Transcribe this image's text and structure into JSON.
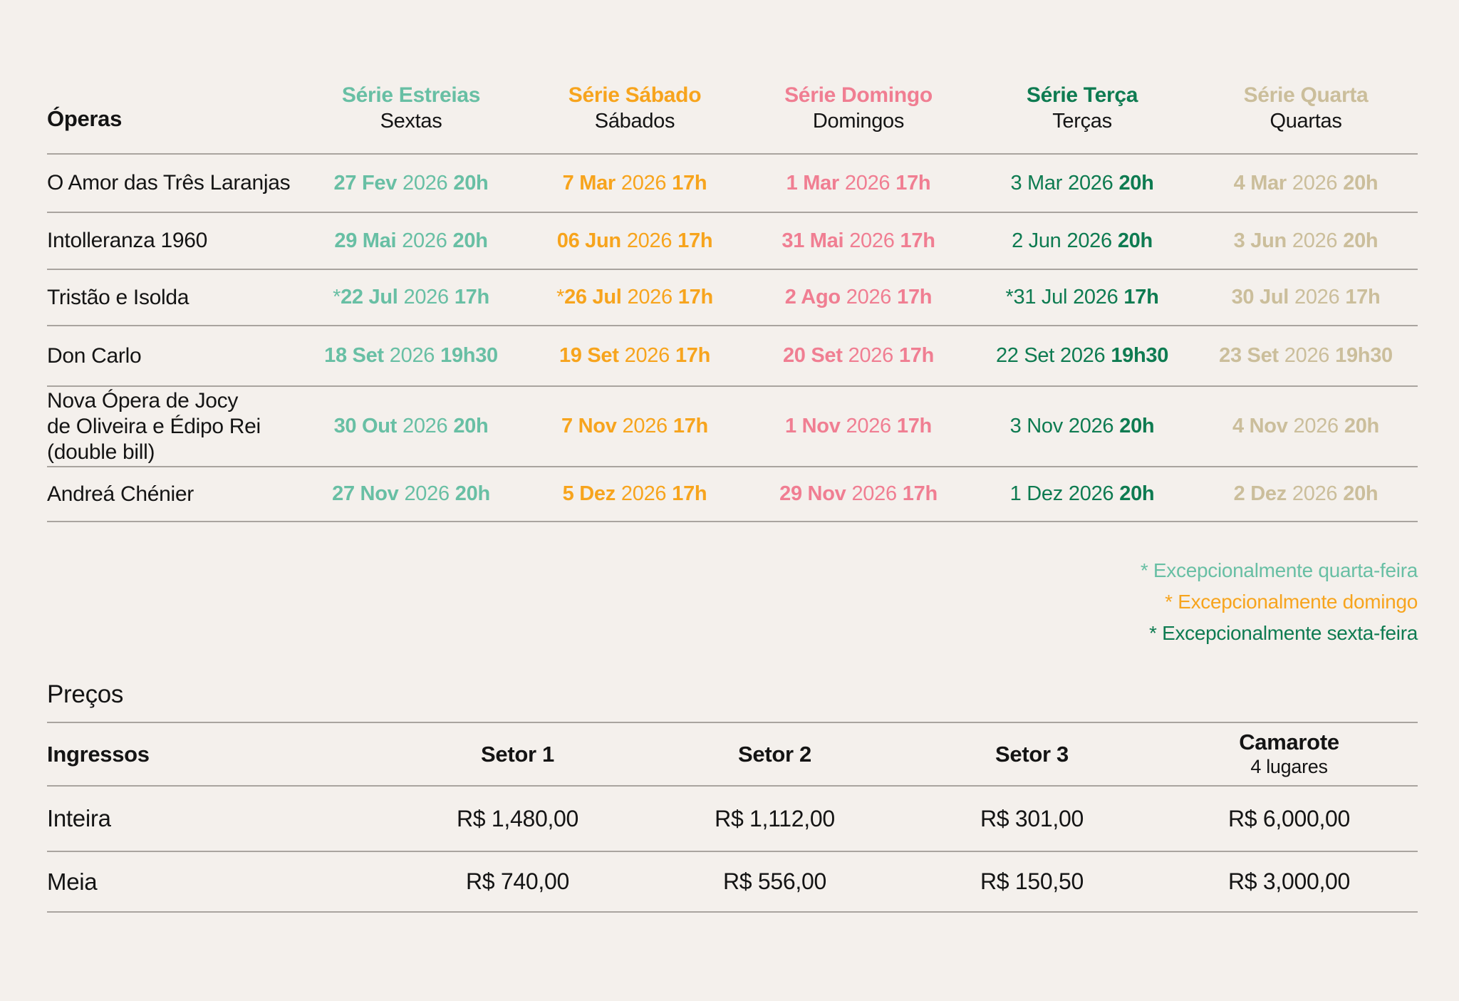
{
  "theme": {
    "bg": "#f4f0ec",
    "ink": "#141414",
    "rule": "#a9a49f",
    "est": "#68bfa4",
    "sab": "#f7a41d",
    "dom": "#f07e92",
    "ter": "#0e7b51",
    "qua": "#cbbe9b"
  },
  "schedule": {
    "first_col_header": "Óperas",
    "columns": [
      {
        "key": "est",
        "title": "Série Estreias",
        "subtitle": "Sextas",
        "color": "#68bfa4"
      },
      {
        "key": "sab",
        "title": "Série Sábado",
        "subtitle": "Sábados",
        "color": "#f7a41d"
      },
      {
        "key": "dom",
        "title": "Série Domingo",
        "subtitle": "Domingos",
        "color": "#f07e92"
      },
      {
        "key": "ter",
        "title": "Série Terça",
        "subtitle": "Terças",
        "color": "#0e7b51"
      },
      {
        "key": "qua",
        "title": "Série Quarta",
        "subtitle": "Quartas",
        "color": "#cbbe9b"
      }
    ],
    "rows": [
      {
        "name": "O Amor das Três Laranjas",
        "est": {
          "star": "",
          "dm": "27 Fev",
          "year": "2026",
          "time": "20h"
        },
        "sab": {
          "star": "",
          "dm": "7 Mar",
          "year": "2026",
          "time": "17h"
        },
        "dom": {
          "star": "",
          "dm": "1 Mar",
          "year": "2026",
          "time": "17h"
        },
        "ter": {
          "star": "",
          "dm": "3 Mar",
          "year": "2026",
          "time": "20h"
        },
        "qua": {
          "star": "",
          "dm": "4 Mar",
          "year": "2026",
          "time": "20h"
        }
      },
      {
        "name": "Intolleranza 1960",
        "est": {
          "star": "",
          "dm": "29 Mai",
          "year": "2026",
          "time": "20h"
        },
        "sab": {
          "star": "",
          "dm": "06 Jun",
          "year": "2026",
          "time": "17h"
        },
        "dom": {
          "star": "",
          "dm": "31 Mai",
          "year": "2026",
          "time": "17h"
        },
        "ter": {
          "star": "",
          "dm": "2 Jun",
          "year": "2026",
          "time": "20h"
        },
        "qua": {
          "star": "",
          "dm": "3 Jun",
          "year": "2026",
          "time": "20h"
        }
      },
      {
        "name": "Tristão e Isolda",
        "est": {
          "star": "*",
          "dm": "22 Jul",
          "year": "2026",
          "time": "17h"
        },
        "sab": {
          "star": "*",
          "dm": "26 Jul",
          "year": "2026",
          "time": "17h"
        },
        "dom": {
          "star": "",
          "dm": "2 Ago",
          "year": "2026",
          "time": "17h"
        },
        "ter": {
          "star": "*",
          "dm": "31 Jul",
          "year": "2026",
          "time": "17h"
        },
        "qua": {
          "star": "",
          "dm": "30 Jul",
          "year": "2026",
          "time": "17h"
        }
      },
      {
        "name": "Don Carlo",
        "est": {
          "star": "",
          "dm": "18 Set",
          "year": "2026",
          "time": "19h30"
        },
        "sab": {
          "star": "",
          "dm": "19 Set",
          "year": "2026",
          "time": "17h"
        },
        "dom": {
          "star": "",
          "dm": "20 Set",
          "year": "2026",
          "time": "17h"
        },
        "ter": {
          "star": "",
          "dm": "22 Set",
          "year": "2026",
          "time": "19h30"
        },
        "qua": {
          "star": "",
          "dm": "23 Set",
          "year": "2026",
          "time": "19h30"
        }
      },
      {
        "name": "Nova Ópera de Jocy\nde Oliveira e Édipo Rei\n(double bill)",
        "est": {
          "star": "",
          "dm": "30 Out",
          "year": "2026",
          "time": "20h"
        },
        "sab": {
          "star": "",
          "dm": "7 Nov",
          "year": "2026",
          "time": "17h"
        },
        "dom": {
          "star": "",
          "dm": "1 Nov",
          "year": "2026",
          "time": "17h"
        },
        "ter": {
          "star": "",
          "dm": "3 Nov",
          "year": "2026",
          "time": "20h"
        },
        "qua": {
          "star": "",
          "dm": "4 Nov",
          "year": "2026",
          "time": "20h"
        }
      },
      {
        "name": "Andreá Chénier",
        "est": {
          "star": "",
          "dm": "27 Nov",
          "year": "2026",
          "time": "20h"
        },
        "sab": {
          "star": "",
          "dm": "5 Dez",
          "year": "2026",
          "time": "17h"
        },
        "dom": {
          "star": "",
          "dm": "29 Nov",
          "year": "2026",
          "time": "17h"
        },
        "ter": {
          "star": "",
          "dm": "1 Dez",
          "year": "2026",
          "time": "20h"
        },
        "qua": {
          "star": "",
          "dm": "2 Dez",
          "year": "2026",
          "time": "20h"
        }
      }
    ]
  },
  "footnotes": [
    {
      "text": "* Excepcionalmente quarta-feira",
      "color": "#68bfa4"
    },
    {
      "text": "* Excepcionalmente domingo",
      "color": "#f7a41d"
    },
    {
      "text": "* Excepcionalmente sexta-feira",
      "color": "#0e7b51"
    }
  ],
  "prices": {
    "section_title": "Preços",
    "first_col_header": "Ingressos",
    "columns": [
      {
        "title": "Setor 1",
        "subtitle": ""
      },
      {
        "title": "Setor 2",
        "subtitle": ""
      },
      {
        "title": "Setor 3",
        "subtitle": ""
      },
      {
        "title": "Camarote",
        "subtitle": "4 lugares"
      }
    ],
    "rows": [
      {
        "label": "Inteira",
        "v0": "R$ 1,480,00",
        "v1": "R$ 1,112,00",
        "v2": "R$ 301,00",
        "v3": "R$ 6,000,00"
      },
      {
        "label": "Meia",
        "v0": "R$ 740,00",
        "v1": "R$ 556,00",
        "v2": "R$ 150,50",
        "v3": "R$ 3,000,00"
      }
    ]
  }
}
